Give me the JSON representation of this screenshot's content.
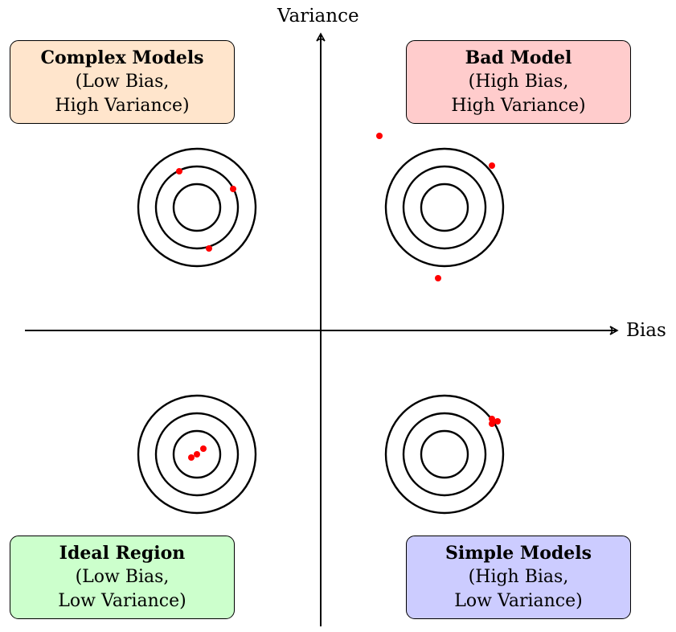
{
  "axes": {
    "x_label": "Bias",
    "y_label": "Variance"
  },
  "quadrants": {
    "complex_models": {
      "title": "Complex Models",
      "line1": "(Low Bias,",
      "line2": "High Variance)",
      "color": "#FFE5CC"
    },
    "bad_model": {
      "title": "Bad Model",
      "line1": "(High Bias,",
      "line2": "High Variance)",
      "color": "#FFCCCC"
    },
    "ideal_region": {
      "title": "Ideal Region",
      "line1": "(Low Bias,",
      "line2": "Low Variance)",
      "color": "#CCFFCC"
    },
    "simple_models": {
      "title": "Simple Models",
      "line1": "(High Bias,",
      "line2": "Low Variance)",
      "color": "#CCCCFF"
    }
  },
  "colors": {
    "shot_dot": "#FF0000",
    "line": "#000000"
  }
}
